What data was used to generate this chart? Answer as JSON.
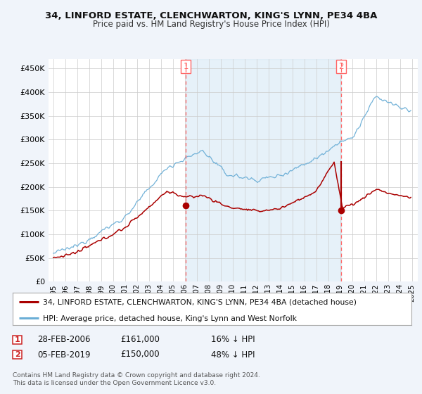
{
  "title1": "34, LINFORD ESTATE, CLENCHWARTON, KING'S LYNN, PE34 4BA",
  "title2": "Price paid vs. HM Land Registry's House Price Index (HPI)",
  "ylabel_ticks": [
    "£0",
    "£50K",
    "£100K",
    "£150K",
    "£200K",
    "£250K",
    "£300K",
    "£350K",
    "£400K",
    "£450K"
  ],
  "ylabel_values": [
    0,
    50000,
    100000,
    150000,
    200000,
    250000,
    300000,
    350000,
    400000,
    450000
  ],
  "ylim": [
    0,
    470000
  ],
  "sale1_price": 161000,
  "sale1_date": "28-FEB-2006",
  "sale1_label": "16% ↓ HPI",
  "sale1_x": 2006.08,
  "sale2_price": 150000,
  "sale2_date": "05-FEB-2019",
  "sale2_label": "48% ↓ HPI",
  "sale2_x": 2019.08,
  "hpi_color": "#6baed6",
  "hpi_fill_color": "#d6e8f5",
  "price_color": "#aa0000",
  "vline_color": "#ff6666",
  "legend_label1": "34, LINFORD ESTATE, CLENCHWARTON, KING'S LYNN, PE34 4BA (detached house)",
  "legend_label2": "HPI: Average price, detached house, King's Lynn and West Norfolk",
  "footer1": "Contains HM Land Registry data © Crown copyright and database right 2024.",
  "footer2": "This data is licensed under the Open Government Licence v3.0.",
  "background_color": "#f0f4fa",
  "plot_bg_color": "#ffffff",
  "xlim_left": 1994.6,
  "xlim_right": 2025.5
}
